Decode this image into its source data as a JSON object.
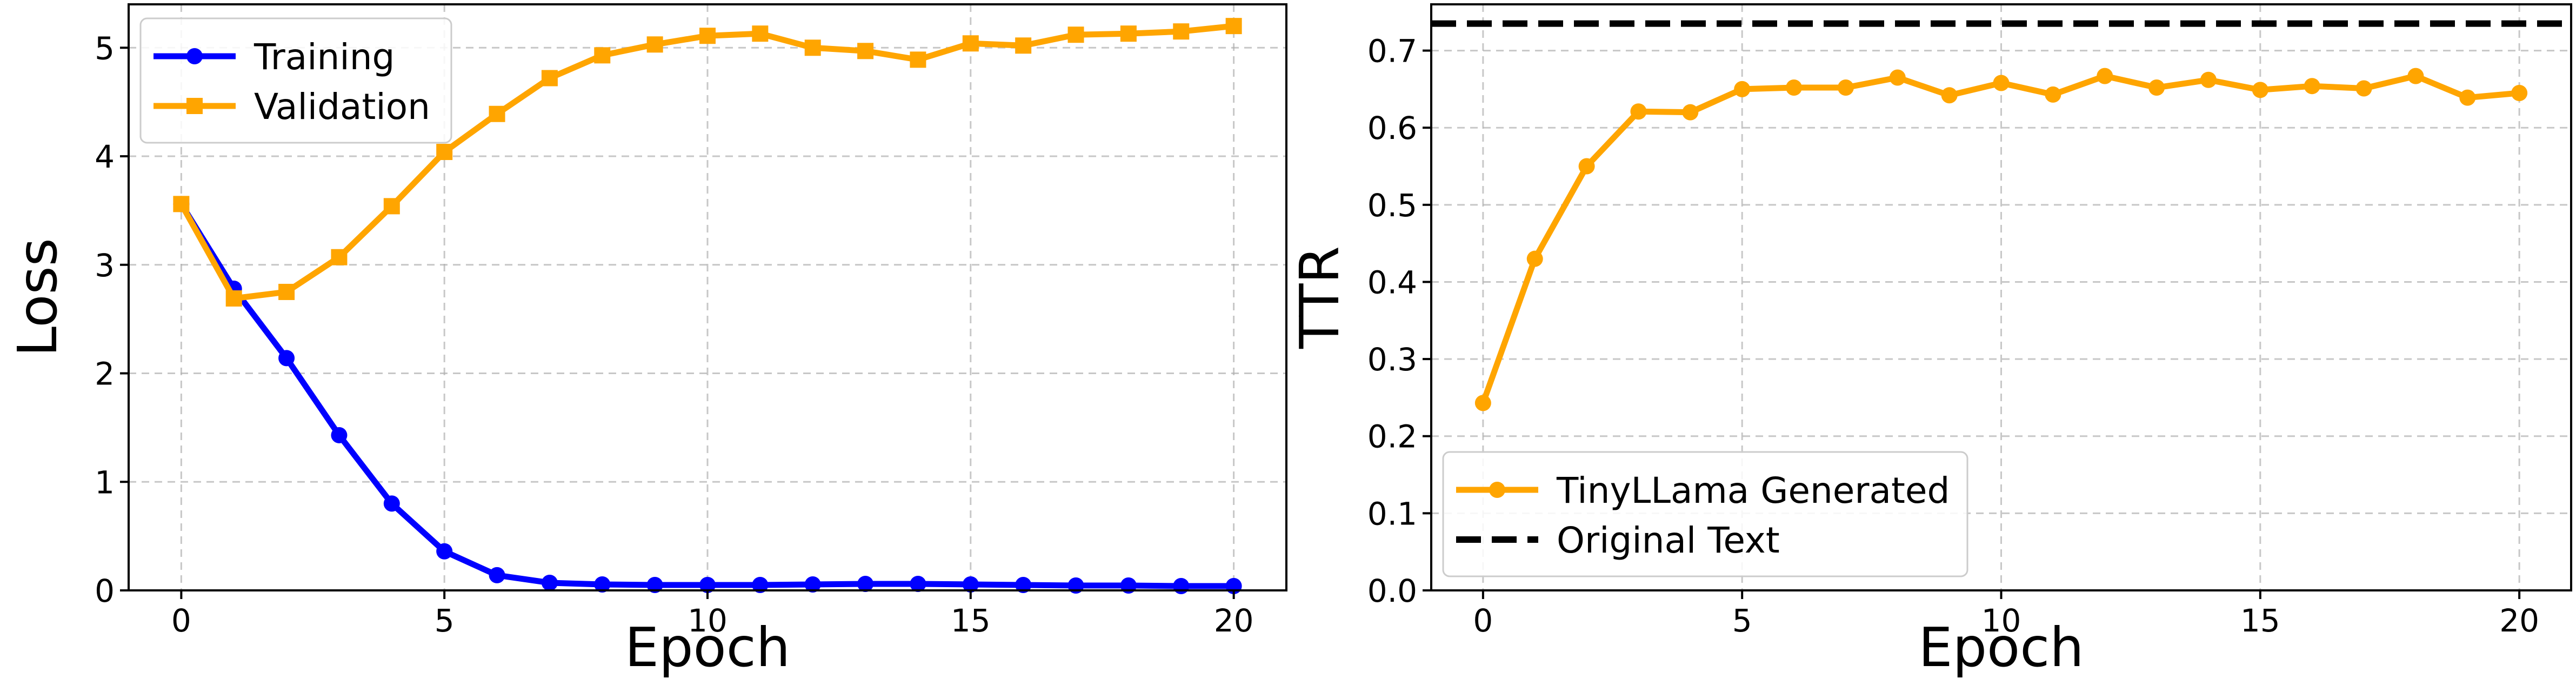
{
  "chart_data": [
    {
      "type": "line",
      "title": "",
      "xlabel": "Epoch",
      "ylabel": "Loss",
      "xlim": [
        -1,
        21
      ],
      "ylim": [
        0,
        5.4
      ],
      "xticks": [
        0,
        5,
        10,
        15,
        20
      ],
      "yticks": [
        0,
        1,
        2,
        3,
        4,
        5
      ],
      "grid": true,
      "legend_position": "top-left",
      "x": [
        0,
        1,
        2,
        3,
        4,
        5,
        6,
        7,
        8,
        9,
        10,
        11,
        12,
        13,
        14,
        15,
        16,
        17,
        18,
        19,
        20
      ],
      "series": [
        {
          "name": "Training",
          "color": "#0000ff",
          "marker": "circle",
          "values": [
            3.56,
            2.78,
            2.14,
            1.43,
            0.8,
            0.36,
            0.14,
            0.07,
            0.055,
            0.05,
            0.05,
            0.05,
            0.055,
            0.06,
            0.06,
            0.055,
            0.05,
            0.045,
            0.045,
            0.04,
            0.04
          ]
        },
        {
          "name": "Validation",
          "color": "#ffa500",
          "marker": "square",
          "values": [
            3.56,
            2.69,
            2.75,
            3.07,
            3.54,
            4.04,
            4.39,
            4.72,
            4.93,
            5.03,
            5.11,
            5.13,
            5.0,
            4.97,
            4.89,
            5.04,
            5.02,
            5.12,
            5.13,
            5.15,
            5.2
          ]
        }
      ]
    },
    {
      "type": "line",
      "title": "",
      "xlabel": "Epoch",
      "ylabel": "TTR",
      "xlim": [
        -1,
        21
      ],
      "ylim": [
        0,
        0.76
      ],
      "xticks": [
        0,
        5,
        10,
        15,
        20
      ],
      "yticks": [
        0.0,
        0.1,
        0.2,
        0.3,
        0.4,
        0.5,
        0.6,
        0.7
      ],
      "ytick_labels": [
        "0.0",
        "0.1",
        "0.2",
        "0.3",
        "0.4",
        "0.5",
        "0.6",
        "0.7"
      ],
      "grid": true,
      "legend_position": "bottom-left",
      "x": [
        0,
        1,
        2,
        3,
        4,
        5,
        6,
        7,
        8,
        9,
        10,
        11,
        12,
        13,
        14,
        15,
        16,
        17,
        18,
        19,
        20
      ],
      "series": [
        {
          "name": "TinyLLama Generated",
          "color": "#ffa500",
          "marker": "circle",
          "values": [
            0.243,
            0.43,
            0.55,
            0.621,
            0.62,
            0.65,
            0.652,
            0.652,
            0.665,
            0.642,
            0.658,
            0.643,
            0.667,
            0.652,
            0.662,
            0.649,
            0.654,
            0.651,
            0.667,
            0.639,
            0.645
          ]
        },
        {
          "name": "Original Text",
          "color": "#000000",
          "style": "dashed",
          "constant": 0.735
        }
      ]
    }
  ]
}
